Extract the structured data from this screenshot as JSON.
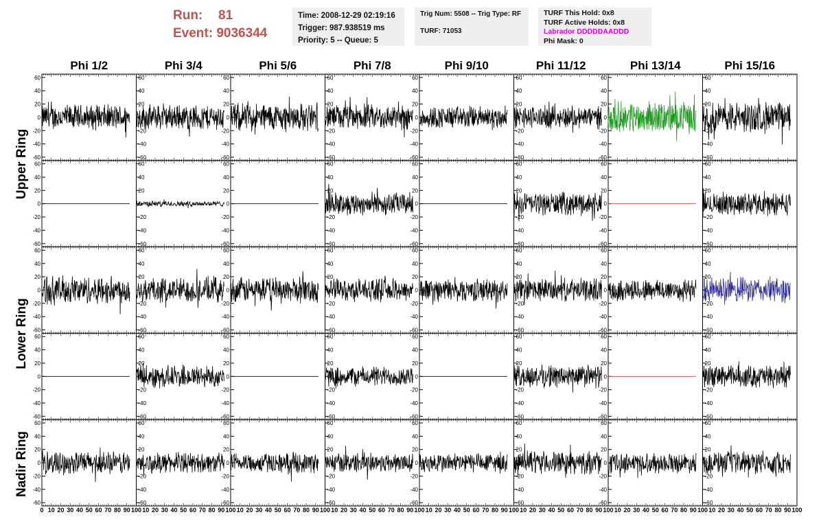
{
  "run_info": {
    "run_label": "Run:",
    "run_value": "81",
    "event_label": "Event:",
    "event_value": "9036344"
  },
  "time_box": {
    "time": "Time: 2008-12-29 02:19:16",
    "trigger": "Trigger: 987.938519 ms",
    "priority": "Priority: 5 -- Queue: 5"
  },
  "trig_box": {
    "trig": "Trig Num: 5508 -- Trig Type: RF",
    "turf": "TURF: 71053"
  },
  "turf_box": {
    "this_hold": "TURF This Hold: 0x8",
    "active_holds": "TURF Active Holds: 0x8",
    "labrador": "Labrador DDDDDAADDD",
    "phi_mask": "Phi Mask: 0"
  },
  "colors": {
    "run_text": "#c8504a",
    "labrador": "#e000e0",
    "trace_default": "#000000",
    "trace_green": "#1a9a1a",
    "trace_blue": "#2a2a9a",
    "trace_flat_red": "#c04040",
    "panel_bg": "#efefef"
  },
  "chart_data": {
    "type": "line",
    "phi_labels": [
      "Phi 1/2",
      "Phi 3/4",
      "Phi 5/6",
      "Phi 7/8",
      "Phi 9/10",
      "Phi 11/12",
      "Phi 13/14",
      "Phi 15/16"
    ],
    "ring_labels": [
      "Upper Ring",
      "Lower Ring",
      "Nadir Ring"
    ],
    "xlim": [
      0,
      100
    ],
    "ylim": [
      -65,
      65
    ],
    "y_ticks": [
      60,
      40,
      20,
      0,
      -20,
      -40,
      -60
    ],
    "x_tick_labels": [
      "0",
      "10",
      "20",
      "30",
      "40",
      "50",
      "60",
      "70",
      "80",
      "90",
      "100"
    ],
    "rows": [
      {
        "ring": "Upper Ring",
        "amplitude": [
          18,
          18,
          20,
          18,
          16,
          16,
          22,
          22
        ],
        "color": [
          "black",
          "black",
          "black",
          "black",
          "black",
          "black",
          "green",
          "black"
        ]
      },
      {
        "ring": "Upper Ring",
        "amplitude": [
          0,
          4,
          0,
          16,
          0,
          16,
          0,
          16
        ],
        "color": [
          "black",
          "black",
          "black",
          "black",
          "black",
          "black",
          "red",
          "black"
        ]
      },
      {
        "ring": "Lower Ring",
        "amplitude": [
          20,
          18,
          18,
          16,
          16,
          16,
          16,
          18
        ],
        "color": [
          "black",
          "black",
          "black",
          "black",
          "black",
          "black",
          "black",
          "blue"
        ]
      },
      {
        "ring": "Lower Ring",
        "amplitude": [
          0,
          16,
          0,
          14,
          0,
          16,
          0,
          16
        ],
        "color": [
          "black",
          "black",
          "black",
          "black",
          "black",
          "black",
          "red",
          "black"
        ]
      },
      {
        "ring": "Nadir Ring",
        "amplitude": [
          16,
          14,
          14,
          14,
          14,
          16,
          14,
          16
        ],
        "color": [
          "black",
          "black",
          "black",
          "black",
          "black",
          "black",
          "black",
          "black"
        ]
      }
    ]
  }
}
